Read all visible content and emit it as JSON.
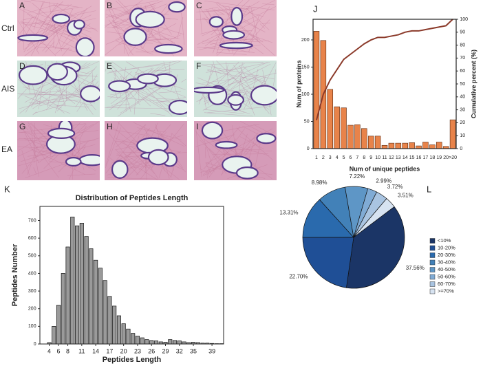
{
  "figure": {
    "image_panels": {
      "row_labels": [
        "Ctrl",
        "AIS",
        "EA"
      ],
      "panel_labels": [
        "A",
        "B",
        "C",
        "D",
        "E",
        "F",
        "G",
        "H",
        "I"
      ]
    }
  },
  "chart_data": [
    {
      "panel": "J",
      "type": "combo",
      "xlabel": "Num of unique peptides",
      "ylabel": "Num of proteins",
      "y2label": "Cumulative percent (%)",
      "categories": [
        "1",
        "2",
        "3",
        "4",
        "5",
        "6",
        "7",
        "8",
        "9",
        "10",
        "11",
        "12",
        "13",
        "14",
        "15",
        "16",
        "17",
        "18",
        "19",
        "20",
        ">20"
      ],
      "series": [
        {
          "type": "bar",
          "color": "#e8834a",
          "values": [
            216,
            199,
            109,
            77,
            75,
            43,
            44,
            37,
            23,
            23,
            6,
            10,
            10,
            10,
            11,
            5,
            12,
            7,
            12,
            4,
            53
          ]
        },
        {
          "type": "line",
          "axis": "y2",
          "color": "#8b3a2a",
          "values": [
            22,
            42,
            53,
            61,
            69,
            73,
            77,
            81,
            84,
            86,
            86,
            87,
            88,
            90,
            91,
            91,
            92,
            93,
            94,
            95,
            100
          ]
        }
      ],
      "ylim": [
        0,
        238
      ],
      "yticks": [
        0,
        50,
        100,
        150,
        200
      ],
      "y2lim": [
        0,
        100
      ],
      "y2ticks": [
        0,
        10,
        20,
        30,
        40,
        50,
        60,
        70,
        80,
        90,
        100
      ]
    },
    {
      "panel": "K",
      "type": "bar",
      "title": "Distribution of Peptides Length",
      "xlabel": "Peptides Length",
      "ylabel": "Peptides Number",
      "color": "#9a9a9a",
      "x": [
        4,
        5,
        6,
        7,
        8,
        9,
        10,
        11,
        12,
        13,
        14,
        15,
        16,
        17,
        18,
        19,
        20,
        21,
        22,
        23,
        24,
        25,
        26,
        27,
        28,
        29,
        30,
        31,
        32,
        33,
        34,
        35,
        36,
        37,
        38,
        39,
        40,
        41
      ],
      "values": [
        8,
        100,
        220,
        400,
        550,
        720,
        670,
        685,
        610,
        540,
        475,
        430,
        360,
        270,
        215,
        160,
        115,
        85,
        60,
        45,
        35,
        25,
        20,
        18,
        12,
        10,
        25,
        20,
        18,
        12,
        8,
        10,
        8,
        5,
        5,
        3,
        2,
        2
      ],
      "xlim": [
        2,
        41.5
      ],
      "xticks": [
        4,
        6,
        8,
        11,
        14,
        17,
        20,
        23,
        26,
        29,
        32,
        35,
        39
      ],
      "ylim": [
        0,
        780
      ],
      "yticks": [
        0,
        100,
        200,
        300,
        400,
        500,
        600,
        700
      ]
    },
    {
      "panel": "L",
      "type": "pie",
      "categories": [
        "<10%",
        "10-20%",
        "20-30%",
        "30-40%",
        "40-50%",
        "50-60%",
        "60-70%",
        ">=70%"
      ],
      "values": [
        37.56,
        22.7,
        13.31,
        8.98,
        7.22,
        2.99,
        3.72,
        3.51
      ],
      "value_labels": [
        "37.56%",
        "22.70%",
        "13.31%",
        "8.98%",
        "7.22%",
        "2.99%",
        "3.72%",
        "3.51%"
      ],
      "colors": [
        "#1b3566",
        "#1f4f96",
        "#2a6aad",
        "#4281b8",
        "#5e96c6",
        "#80abd5",
        "#a9c4e1",
        "#d7e3f1"
      ],
      "legend": "right"
    }
  ]
}
